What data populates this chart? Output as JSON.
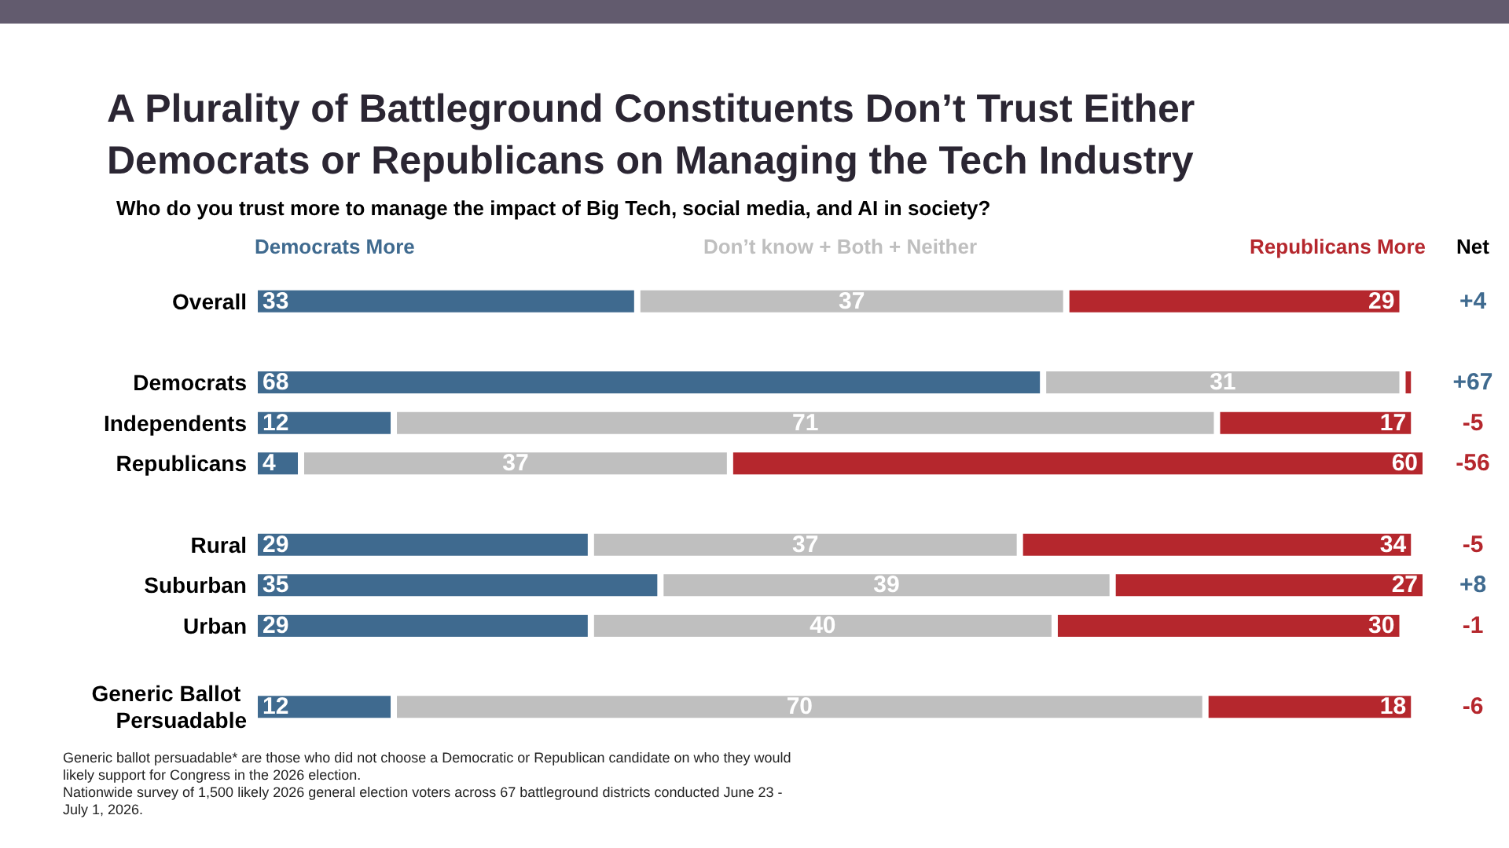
{
  "chart_data": {
    "type": "bar",
    "orientation": "horizontal",
    "stacked": true,
    "title": "A Plurality of Battleground Constituents Don’t Trust Either Democrats or Republicans on Managing the Tech Industry",
    "subtitle": "Who do you trust more to manage the impact of Big Tech, social media, and AI in society?",
    "categories": [
      "Overall",
      null,
      "Democrats",
      "Independents",
      "Republicans",
      null,
      "Rural",
      "Suburban",
      "Urban",
      null,
      "Generic Ballot Persuadable"
    ],
    "series": [
      {
        "name": "Democrats More",
        "color": "#3f6a8f",
        "values": [
          33,
          null,
          68,
          12,
          4,
          null,
          29,
          35,
          29,
          null,
          12
        ],
        "value_labels": [
          "33",
          null,
          "68",
          "12",
          "4",
          null,
          "29",
          "35",
          "29",
          null,
          "12"
        ]
      },
      {
        "name": "Don’t know + Both + Neither",
        "color": "#bfbfbf",
        "values": [
          37,
          null,
          31,
          71,
          37,
          null,
          37,
          39,
          40,
          null,
          70
        ],
        "value_labels": [
          "37",
          null,
          "31",
          "71",
          "37",
          null,
          "37",
          "39",
          "40",
          null,
          "70"
        ]
      },
      {
        "name": "Republicans More",
        "color": "#b5272d",
        "values": [
          29,
          null,
          1,
          17,
          60,
          null,
          34,
          27,
          30,
          null,
          18
        ],
        "value_labels": [
          "29",
          null,
          null,
          "17",
          "60",
          null,
          "34",
          "27",
          "30",
          null,
          "18"
        ]
      }
    ],
    "xlim": [
      0,
      101
    ],
    "legend": "top",
    "annotations": [
      "Net",
      "+4",
      "+67",
      "-5",
      "-56",
      "-5",
      "+8",
      "-1",
      "-6",
      "Generic ballot persuadable* are those who did not choose a Democratic or Republican candidate on who they would likely support for Congress in the 2026 election.",
      "Nationwide survey of 1,500 likely 2026 general election voters across 67 battleground districts conducted June 23 - July 1, 2026."
    ]
  }
}
